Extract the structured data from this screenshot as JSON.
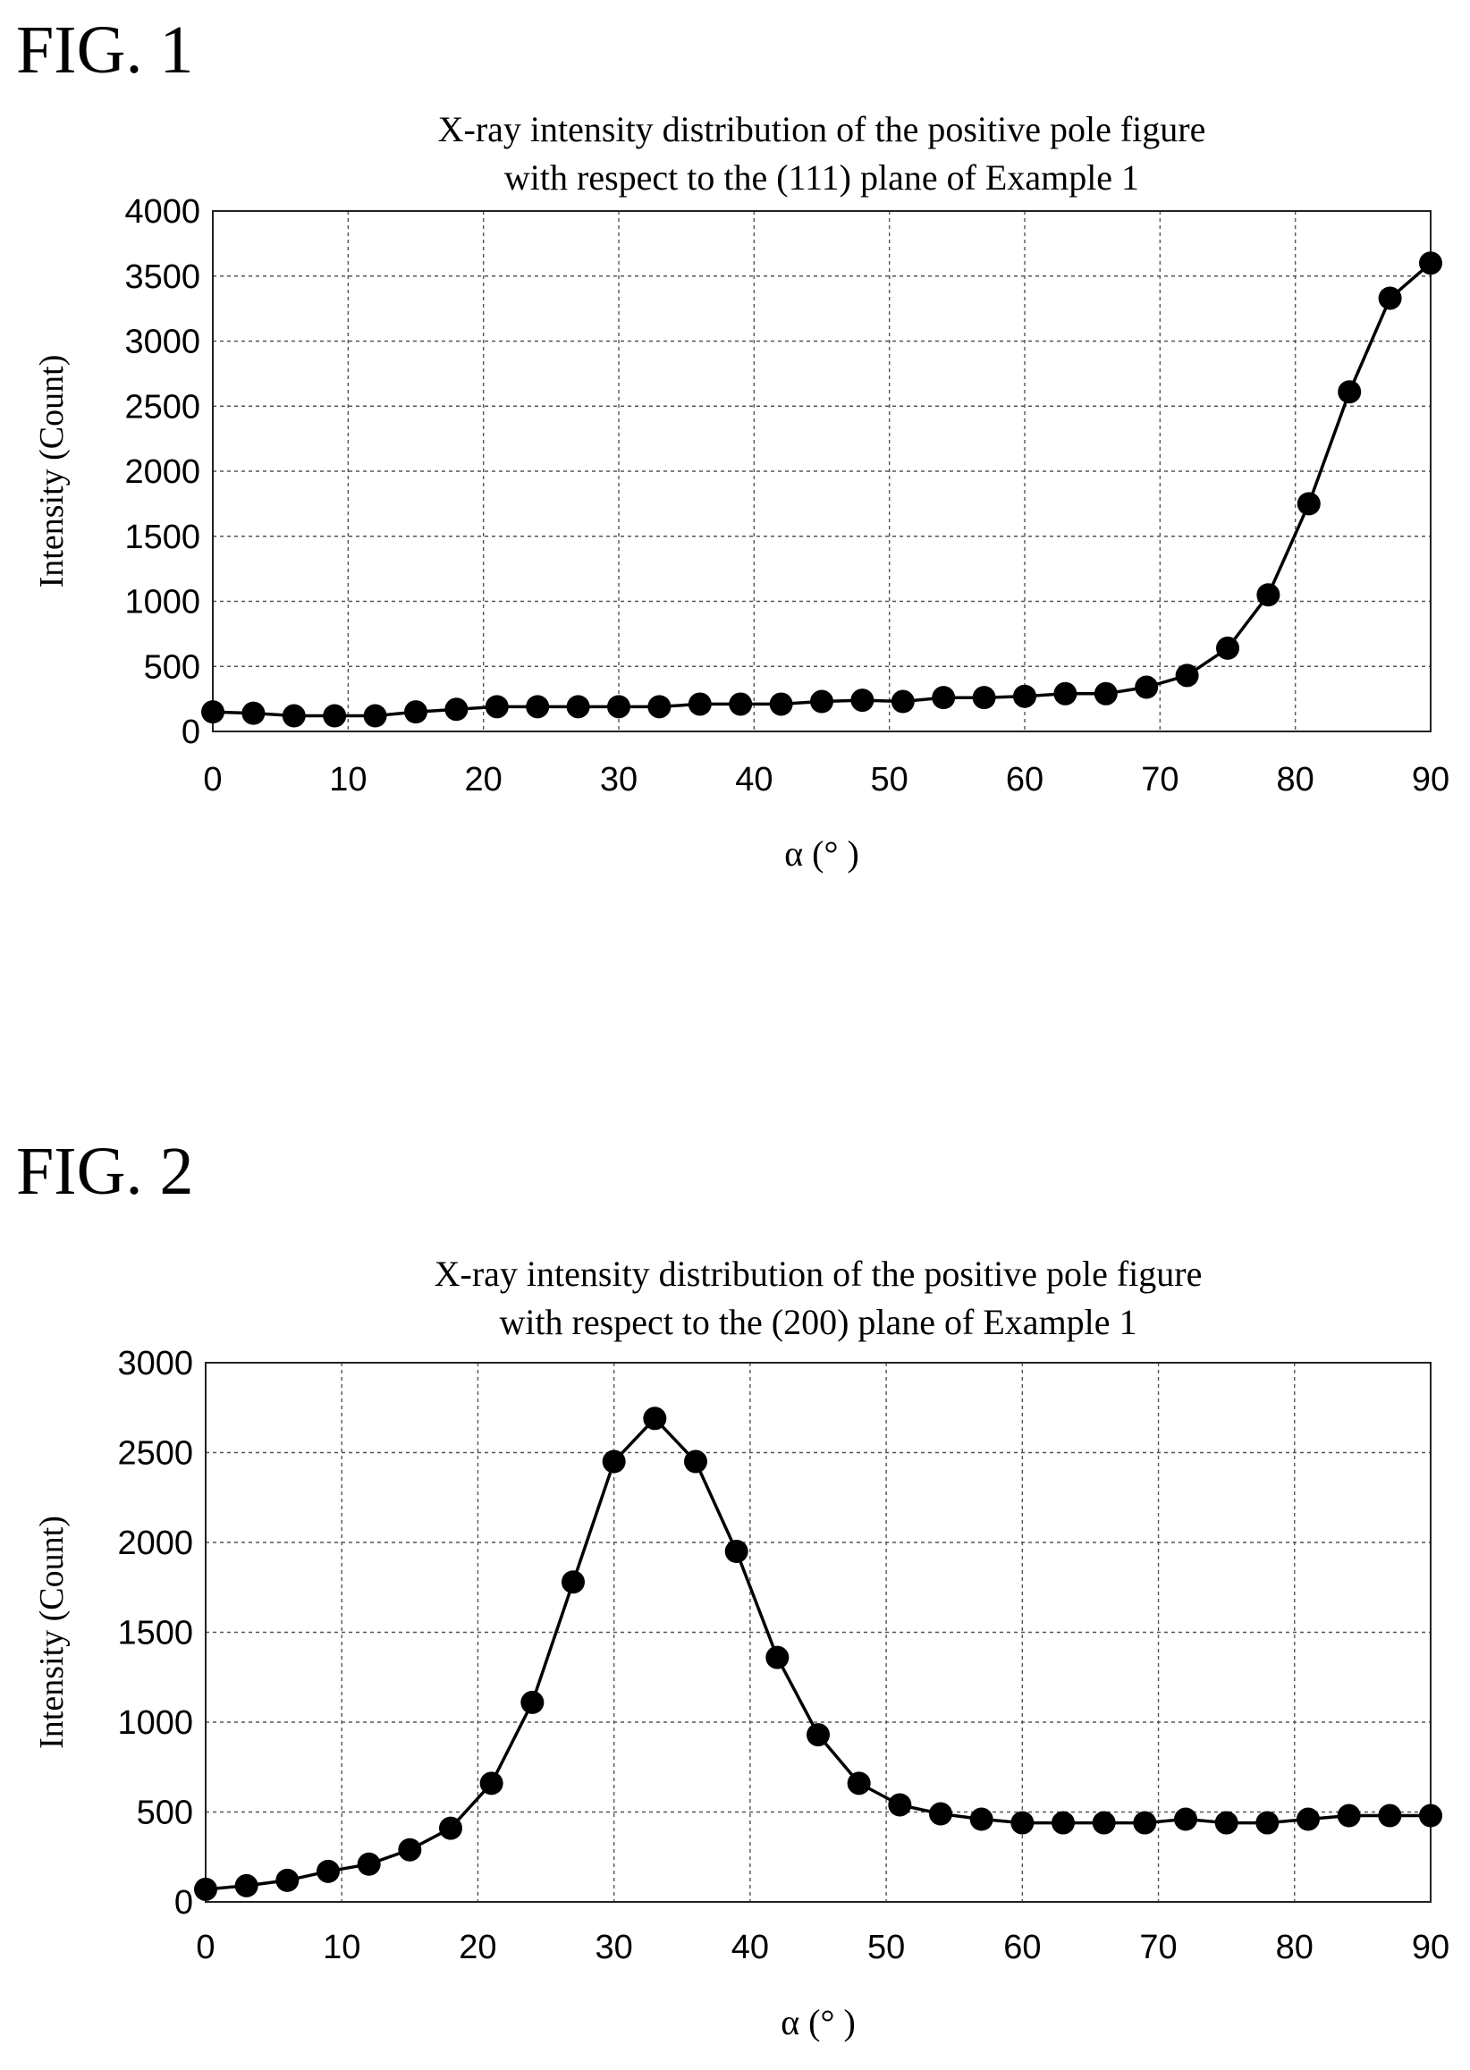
{
  "figures": [
    {
      "label": "FIG. 1"
    },
    {
      "label": "FIG. 2"
    }
  ],
  "chart_data": [
    {
      "type": "line",
      "title_lines": [
        "X-ray intensity distribution of the positive pole figure",
        "with respect to the (111) plane of Example 1"
      ],
      "xlabel": "α (°  )",
      "ylabel": "Intensity (Count)",
      "xlim": [
        0,
        90
      ],
      "ylim": [
        0,
        4000
      ],
      "xticks": [
        0,
        10,
        20,
        30,
        40,
        50,
        60,
        70,
        80,
        90
      ],
      "yticks": [
        0,
        500,
        1000,
        1500,
        2000,
        2500,
        3000,
        3500,
        4000
      ],
      "grid": true,
      "markers": "filled-circle",
      "series": [
        {
          "x": [
            0,
            3,
            6,
            9,
            12,
            15,
            18,
            21,
            24,
            27,
            30,
            33,
            36,
            39,
            42,
            45,
            48,
            51,
            54,
            57,
            60,
            63,
            66,
            69,
            72,
            75,
            78,
            81,
            84,
            87,
            90
          ],
          "values": [
            150,
            140,
            120,
            120,
            120,
            150,
            170,
            190,
            190,
            190,
            190,
            190,
            210,
            210,
            210,
            230,
            240,
            230,
            260,
            260,
            270,
            290,
            290,
            340,
            430,
            640,
            1050,
            1750,
            2610,
            3330,
            3600
          ]
        }
      ]
    },
    {
      "type": "line",
      "title_lines": [
        "X-ray intensity distribution of the positive pole figure",
        "with respect to the (200) plane of Example 1"
      ],
      "xlabel": "α (°  )",
      "ylabel": "Intensity (Count)",
      "xlim": [
        0,
        90
      ],
      "ylim": [
        0,
        3000
      ],
      "xticks": [
        0,
        10,
        20,
        30,
        40,
        50,
        60,
        70,
        80,
        90
      ],
      "yticks": [
        0,
        500,
        1000,
        1500,
        2000,
        2500,
        3000
      ],
      "grid": true,
      "markers": "filled-circle",
      "series": [
        {
          "x": [
            0,
            3,
            6,
            9,
            12,
            15,
            18,
            21,
            24,
            27,
            30,
            33,
            36,
            39,
            42,
            45,
            48,
            51,
            54,
            57,
            60,
            63,
            66,
            69,
            72,
            75,
            78,
            81,
            84,
            87,
            90
          ],
          "values": [
            70,
            90,
            120,
            170,
            210,
            290,
            410,
            660,
            1110,
            1780,
            2450,
            2690,
            2450,
            1950,
            1360,
            930,
            660,
            540,
            490,
            460,
            440,
            440,
            440,
            440,
            460,
            440,
            440,
            460,
            480,
            480,
            480
          ]
        }
      ]
    }
  ]
}
